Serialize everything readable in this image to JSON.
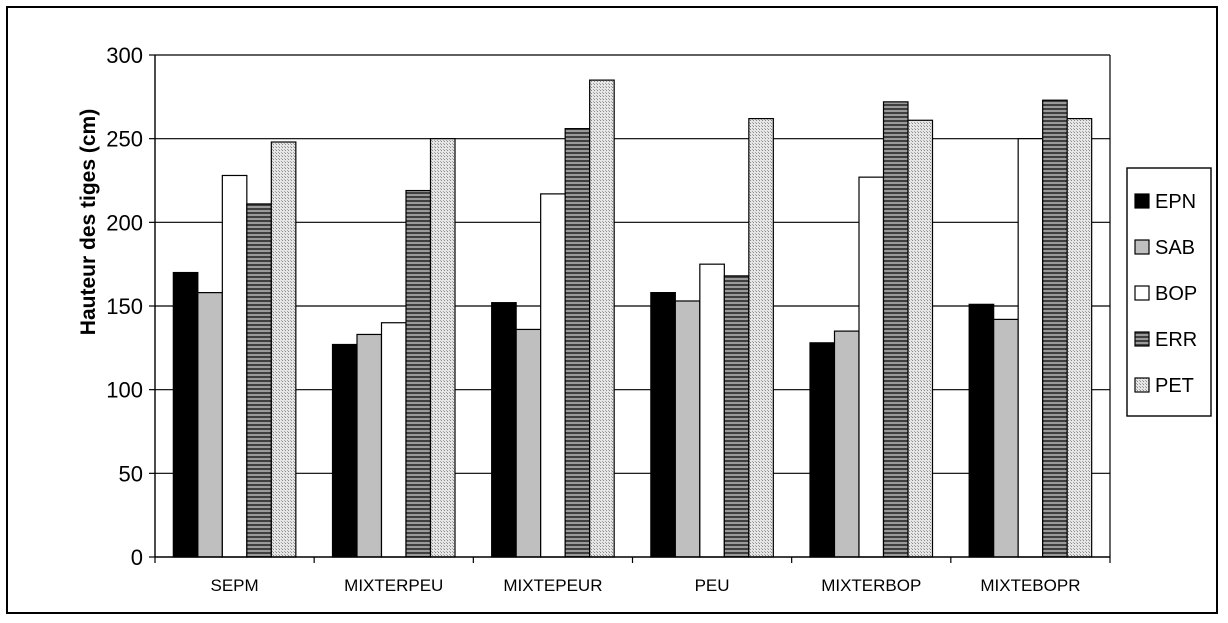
{
  "chart_data": {
    "type": "bar",
    "title": "",
    "xlabel": "",
    "ylabel": "Hauteur des tiges (cm)",
    "ylim": [
      0,
      300
    ],
    "yticks": [
      0,
      50,
      100,
      150,
      200,
      250,
      300
    ],
    "grid": "horizontal",
    "legend_position": "right",
    "categories": [
      "SEPM",
      "MIXTERPEU",
      "MIXTEPEUR",
      "PEU",
      "MIXTERBOP",
      "MIXTEBOPR"
    ],
    "series": [
      {
        "name": "EPN",
        "fill": "#000000",
        "pattern": "solid",
        "values": [
          170,
          127,
          152,
          158,
          128,
          151
        ]
      },
      {
        "name": "SAB",
        "fill": "#bfbfbf",
        "pattern": "solid",
        "values": [
          158,
          133,
          136,
          153,
          135,
          142
        ]
      },
      {
        "name": "BOP",
        "fill": "#ffffff",
        "pattern": "solid",
        "values": [
          228,
          140,
          217,
          175,
          227,
          250
        ]
      },
      {
        "name": "ERR",
        "fill": "#808080",
        "pattern": "horizontal-stripes",
        "values": [
          211,
          219,
          256,
          168,
          272,
          273
        ]
      },
      {
        "name": "PET",
        "fill": "#d9d9d9",
        "pattern": "dots",
        "values": [
          248,
          250,
          285,
          262,
          261,
          262
        ]
      }
    ]
  }
}
